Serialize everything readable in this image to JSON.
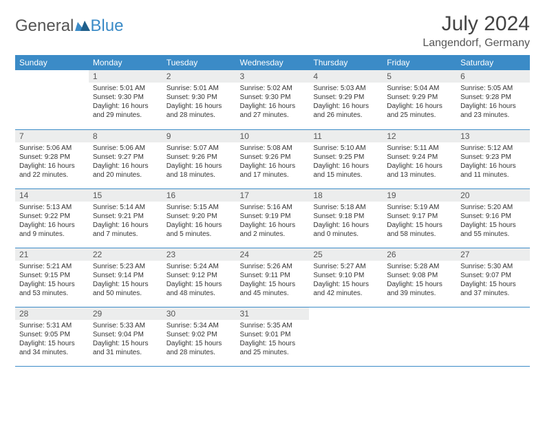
{
  "brand": {
    "part1": "General",
    "part2": "Blue"
  },
  "title": "July 2024",
  "location": "Langendorf, Germany",
  "colors": {
    "header_bg": "#3b8bc7",
    "header_text": "#ffffff",
    "daynum_bg": "#eceded",
    "border": "#3b8bc7",
    "text": "#333333",
    "brand_gray": "#555555",
    "brand_blue": "#3b8bc7"
  },
  "typography": {
    "title_fontsize": 30,
    "location_fontsize": 16,
    "weekday_fontsize": 12,
    "daynum_fontsize": 12,
    "body_fontsize": 10
  },
  "weekdays": [
    "Sunday",
    "Monday",
    "Tuesday",
    "Wednesday",
    "Thursday",
    "Friday",
    "Saturday"
  ],
  "weeks": [
    [
      {
        "n": "",
        "sr": "",
        "ss": "",
        "dl": ""
      },
      {
        "n": "1",
        "sr": "Sunrise: 5:01 AM",
        "ss": "Sunset: 9:30 PM",
        "dl": "Daylight: 16 hours and 29 minutes."
      },
      {
        "n": "2",
        "sr": "Sunrise: 5:01 AM",
        "ss": "Sunset: 9:30 PM",
        "dl": "Daylight: 16 hours and 28 minutes."
      },
      {
        "n": "3",
        "sr": "Sunrise: 5:02 AM",
        "ss": "Sunset: 9:30 PM",
        "dl": "Daylight: 16 hours and 27 minutes."
      },
      {
        "n": "4",
        "sr": "Sunrise: 5:03 AM",
        "ss": "Sunset: 9:29 PM",
        "dl": "Daylight: 16 hours and 26 minutes."
      },
      {
        "n": "5",
        "sr": "Sunrise: 5:04 AM",
        "ss": "Sunset: 9:29 PM",
        "dl": "Daylight: 16 hours and 25 minutes."
      },
      {
        "n": "6",
        "sr": "Sunrise: 5:05 AM",
        "ss": "Sunset: 9:28 PM",
        "dl": "Daylight: 16 hours and 23 minutes."
      }
    ],
    [
      {
        "n": "7",
        "sr": "Sunrise: 5:06 AM",
        "ss": "Sunset: 9:28 PM",
        "dl": "Daylight: 16 hours and 22 minutes."
      },
      {
        "n": "8",
        "sr": "Sunrise: 5:06 AM",
        "ss": "Sunset: 9:27 PM",
        "dl": "Daylight: 16 hours and 20 minutes."
      },
      {
        "n": "9",
        "sr": "Sunrise: 5:07 AM",
        "ss": "Sunset: 9:26 PM",
        "dl": "Daylight: 16 hours and 18 minutes."
      },
      {
        "n": "10",
        "sr": "Sunrise: 5:08 AM",
        "ss": "Sunset: 9:26 PM",
        "dl": "Daylight: 16 hours and 17 minutes."
      },
      {
        "n": "11",
        "sr": "Sunrise: 5:10 AM",
        "ss": "Sunset: 9:25 PM",
        "dl": "Daylight: 16 hours and 15 minutes."
      },
      {
        "n": "12",
        "sr": "Sunrise: 5:11 AM",
        "ss": "Sunset: 9:24 PM",
        "dl": "Daylight: 16 hours and 13 minutes."
      },
      {
        "n": "13",
        "sr": "Sunrise: 5:12 AM",
        "ss": "Sunset: 9:23 PM",
        "dl": "Daylight: 16 hours and 11 minutes."
      }
    ],
    [
      {
        "n": "14",
        "sr": "Sunrise: 5:13 AM",
        "ss": "Sunset: 9:22 PM",
        "dl": "Daylight: 16 hours and 9 minutes."
      },
      {
        "n": "15",
        "sr": "Sunrise: 5:14 AM",
        "ss": "Sunset: 9:21 PM",
        "dl": "Daylight: 16 hours and 7 minutes."
      },
      {
        "n": "16",
        "sr": "Sunrise: 5:15 AM",
        "ss": "Sunset: 9:20 PM",
        "dl": "Daylight: 16 hours and 5 minutes."
      },
      {
        "n": "17",
        "sr": "Sunrise: 5:16 AM",
        "ss": "Sunset: 9:19 PM",
        "dl": "Daylight: 16 hours and 2 minutes."
      },
      {
        "n": "18",
        "sr": "Sunrise: 5:18 AM",
        "ss": "Sunset: 9:18 PM",
        "dl": "Daylight: 16 hours and 0 minutes."
      },
      {
        "n": "19",
        "sr": "Sunrise: 5:19 AM",
        "ss": "Sunset: 9:17 PM",
        "dl": "Daylight: 15 hours and 58 minutes."
      },
      {
        "n": "20",
        "sr": "Sunrise: 5:20 AM",
        "ss": "Sunset: 9:16 PM",
        "dl": "Daylight: 15 hours and 55 minutes."
      }
    ],
    [
      {
        "n": "21",
        "sr": "Sunrise: 5:21 AM",
        "ss": "Sunset: 9:15 PM",
        "dl": "Daylight: 15 hours and 53 minutes."
      },
      {
        "n": "22",
        "sr": "Sunrise: 5:23 AM",
        "ss": "Sunset: 9:14 PM",
        "dl": "Daylight: 15 hours and 50 minutes."
      },
      {
        "n": "23",
        "sr": "Sunrise: 5:24 AM",
        "ss": "Sunset: 9:12 PM",
        "dl": "Daylight: 15 hours and 48 minutes."
      },
      {
        "n": "24",
        "sr": "Sunrise: 5:26 AM",
        "ss": "Sunset: 9:11 PM",
        "dl": "Daylight: 15 hours and 45 minutes."
      },
      {
        "n": "25",
        "sr": "Sunrise: 5:27 AM",
        "ss": "Sunset: 9:10 PM",
        "dl": "Daylight: 15 hours and 42 minutes."
      },
      {
        "n": "26",
        "sr": "Sunrise: 5:28 AM",
        "ss": "Sunset: 9:08 PM",
        "dl": "Daylight: 15 hours and 39 minutes."
      },
      {
        "n": "27",
        "sr": "Sunrise: 5:30 AM",
        "ss": "Sunset: 9:07 PM",
        "dl": "Daylight: 15 hours and 37 minutes."
      }
    ],
    [
      {
        "n": "28",
        "sr": "Sunrise: 5:31 AM",
        "ss": "Sunset: 9:05 PM",
        "dl": "Daylight: 15 hours and 34 minutes."
      },
      {
        "n": "29",
        "sr": "Sunrise: 5:33 AM",
        "ss": "Sunset: 9:04 PM",
        "dl": "Daylight: 15 hours and 31 minutes."
      },
      {
        "n": "30",
        "sr": "Sunrise: 5:34 AM",
        "ss": "Sunset: 9:02 PM",
        "dl": "Daylight: 15 hours and 28 minutes."
      },
      {
        "n": "31",
        "sr": "Sunrise: 5:35 AM",
        "ss": "Sunset: 9:01 PM",
        "dl": "Daylight: 15 hours and 25 minutes."
      },
      {
        "n": "",
        "sr": "",
        "ss": "",
        "dl": ""
      },
      {
        "n": "",
        "sr": "",
        "ss": "",
        "dl": ""
      },
      {
        "n": "",
        "sr": "",
        "ss": "",
        "dl": ""
      }
    ]
  ]
}
